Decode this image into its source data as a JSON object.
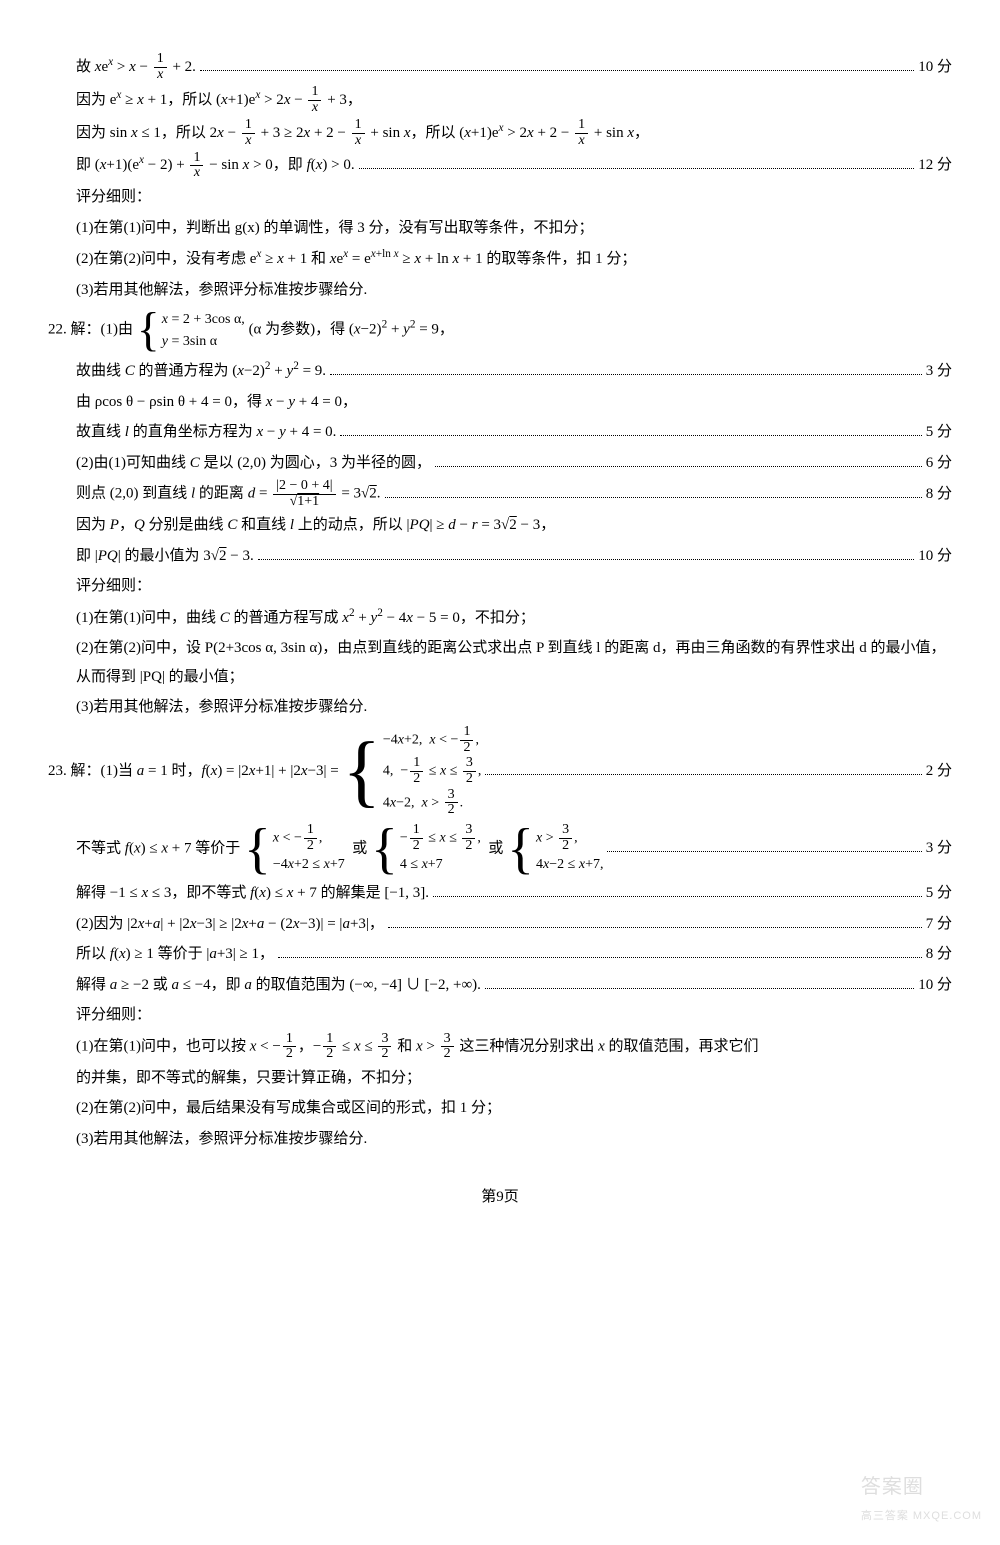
{
  "page": {
    "pageWidth": 1000,
    "pageHeight": 1545,
    "background": "#ffffff",
    "textColor": "#000000",
    "fontFamily": "SimSun/Songti",
    "baseFontSize": 15,
    "lineHeight": 1.9,
    "footer": "第9页",
    "watermark": {
      "main": "答案圈",
      "sub": "高三答案  MXQE.COM",
      "color": "#cccccc"
    }
  },
  "lines": [
    {
      "indent": 1,
      "text": "故 xeˣ > x − 1/x + 2.",
      "score": "10 分"
    },
    {
      "indent": 1,
      "text": "因为 eˣ ≥ x + 1，所以 (x+1)eˣ > 2x − 1/x + 3，"
    },
    {
      "indent": 1,
      "text": "因为 sin x ≤ 1，所以 2x − 1/x + 3 ≥ 2x + 2 − 1/x + sin x，所以 (x+1)eˣ > 2x + 2 − 1/x + sin x，"
    },
    {
      "indent": 1,
      "text": "即 (x+1)(eˣ − 2) + 1/x − sin x > 0，即 f(x) > 0.",
      "score": "12 分"
    },
    {
      "indent": 1,
      "text": "评分细则："
    },
    {
      "indent": 1,
      "text": "(1)在第(1)问中，判断出 g(x) 的单调性，得 3 分，没有写出取等条件，不扣分；"
    },
    {
      "indent": 1,
      "text": "(2)在第(2)问中，没有考虑 eˣ ≥ x + 1 和 xeˣ = e^{x+ln x} ≥ x + ln x + 1 的取等条件，扣 1 分；"
    },
    {
      "indent": 1,
      "text": "(3)若用其他解法，参照评分标准按步骤给分."
    },
    {
      "indent": 0,
      "label": "22.",
      "text": "解：(1)由 { x = 2 + 3cos α, y = 3sin α } (α 为参数)，得 (x−2)² + y² = 9，"
    },
    {
      "indent": 1,
      "text": "故曲线 C 的普通方程为 (x−2)² + y² = 9.",
      "score": "3 分"
    },
    {
      "indent": 1,
      "text": "由 ρcos θ − ρsin θ + 4 = 0，得 x − y + 4 = 0，"
    },
    {
      "indent": 1,
      "text": "故直线 l 的直角坐标方程为 x − y + 4 = 0.",
      "score": "5 分"
    },
    {
      "indent": 1,
      "text": "(2)由(1)可知曲线 C 是以 (2,0) 为圆心，3 为半径的圆，",
      "score": "6 分"
    },
    {
      "indent": 1,
      "text": "则点 (2,0) 到直线 l 的距离 d = |2 − 0 + 4| / √(1+1) = 3√2.",
      "score": "8 分"
    },
    {
      "indent": 1,
      "text": "因为 P，Q 分别是曲线 C 和直线 l 上的动点，所以 |PQ| ≥ d − r = 3√2 − 3，"
    },
    {
      "indent": 1,
      "text": "即 |PQ| 的最小值为 3√2 − 3.",
      "score": "10 分"
    },
    {
      "indent": 1,
      "text": "评分细则："
    },
    {
      "indent": 1,
      "text": "(1)在第(1)问中，曲线 C 的普通方程写成 x² + y² − 4x − 5 = 0，不扣分；"
    },
    {
      "indent": 1,
      "text": "(2)在第(2)问中，设 P(2+3cos α, 3sin α)，由点到直线的距离公式求出点 P 到直线 l 的距离 d，再由三角函数的有界性求出 d 的最小值，从而得到 |PQ| 的最小值；"
    },
    {
      "indent": 1,
      "text": "(3)若用其他解法，参照评分标准按步骤给分."
    },
    {
      "indent": 0,
      "label": "23.",
      "text": "解：(1)当 a = 1 时，f(x) = |2x+1| + |2x−3| = { −4x+2, x < −1/2；  4, −1/2 ≤ x ≤ 3/2；  4x−2, x > 3/2.",
      "score": "2 分"
    },
    {
      "indent": 1,
      "text": "不等式 f(x) ≤ x + 7 等价于 { x < −1/2, −4x+2 ≤ x+7 } 或 { −1/2 ≤ x ≤ 3/2, 4 ≤ x+7 } 或 { x > 3/2, 4x−2 ≤ x+7 }，",
      "score": "3 分"
    },
    {
      "indent": 1,
      "text": "解得 −1 ≤ x ≤ 3，即不等式 f(x) ≤ x + 7 的解集是 [−1, 3].",
      "score": "5 分"
    },
    {
      "indent": 1,
      "text": "(2)因为 |2x+a| + |2x−3| ≥ |2x+a − (2x−3)| = |a+3|，",
      "score": "7 分"
    },
    {
      "indent": 1,
      "text": "所以 f(x) ≥ 1 等价于 |a+3| ≥ 1，",
      "score": "8 分"
    },
    {
      "indent": 1,
      "text": "解得 a ≥ −2 或 a ≤ −4，即 a 的取值范围为 (−∞, −4] ∪ [−2, +∞).",
      "score": "10 分"
    },
    {
      "indent": 1,
      "text": "评分细则："
    },
    {
      "indent": 1,
      "text": "(1)在第(1)问中，也可以按 x < −1/2，−1/2 ≤ x ≤ 3/2 和 x > 3/2 这三种情况分别求出 x 的取值范围，再求它们的并集，即不等式的解集，只要计算正确，不扣分；"
    },
    {
      "indent": 1,
      "text": "(2)在第(2)问中，最后结果没有写成集合或区间的形式，扣 1 分；"
    },
    {
      "indent": 1,
      "text": "(3)若用其他解法，参照评分标准按步骤给分."
    }
  ]
}
